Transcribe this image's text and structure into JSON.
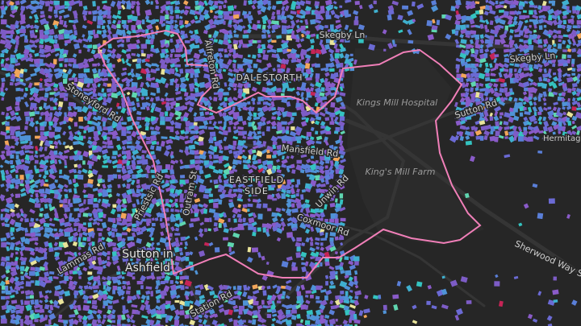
{
  "roads": [
    "Skegby Ln",
    "Skegby Ln",
    "Sutton Rd",
    "Hermitage Mill Rd",
    "Mansfield Rd",
    "Coxmoor Rd",
    "Sherwood Way S",
    "Station Rd",
    "Priestsic Rd",
    "Stoneyford Rd",
    "Lammas Rd",
    "Outram St",
    "Unwin Rd",
    "Alfreton Rd"
  ],
  "places": [
    "Kings Mill Hospital",
    "King's Mill Farm",
    "DALESTORTH",
    "EASTFIELD",
    "SIDE",
    "Sutton in",
    "Ashfield"
  ]
}
